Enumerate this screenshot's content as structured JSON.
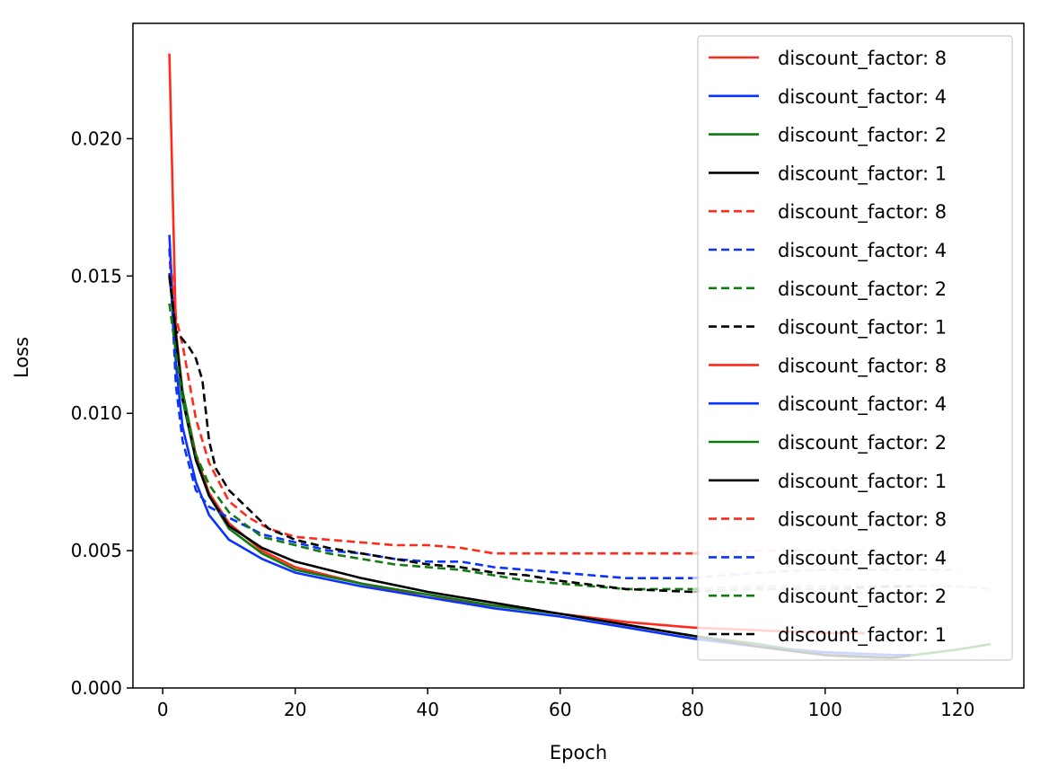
{
  "chart_data": {
    "type": "line",
    "title": "",
    "xlabel": "Epoch",
    "ylabel": "Loss",
    "xlim": [
      -4.5,
      130
    ],
    "ylim": [
      0,
      0.0242
    ],
    "x_ticks": [
      0,
      20,
      40,
      60,
      80,
      100,
      120
    ],
    "y_ticks": [
      0.0,
      0.005,
      0.01,
      0.015,
      0.02
    ],
    "y_tick_labels": [
      "0.000",
      "0.005",
      "0.010",
      "0.015",
      "0.020"
    ],
    "grid": false,
    "legend_position": "top-right",
    "series": [
      {
        "name": "discount_factor: 8",
        "color": "#ff2a1a",
        "style": "solid",
        "alpha": 1.0,
        "smooth": false,
        "x": [
          1,
          2,
          3,
          5,
          7,
          10,
          15,
          20,
          30,
          40,
          50,
          60,
          70,
          80,
          90,
          100,
          106
        ],
        "y": [
          0.0231,
          0.013,
          0.0108,
          0.0085,
          0.0071,
          0.006,
          0.005,
          0.0044,
          0.0038,
          0.0033,
          0.003,
          0.0027,
          0.0024,
          0.0022,
          0.0021,
          0.002,
          0.002
        ]
      },
      {
        "name": "discount_factor: 4",
        "color": "#0a33ff",
        "style": "solid",
        "alpha": 1.0,
        "smooth": false,
        "x": [
          1,
          2,
          3,
          5,
          7,
          10,
          15,
          20,
          30,
          40,
          50,
          60,
          70,
          80,
          90,
          100,
          110,
          113
        ],
        "y": [
          0.0165,
          0.0118,
          0.0095,
          0.0075,
          0.0063,
          0.0054,
          0.0047,
          0.0042,
          0.0037,
          0.0033,
          0.0029,
          0.0026,
          0.0022,
          0.0018,
          0.0015,
          0.0013,
          0.0012,
          0.0012
        ]
      },
      {
        "name": "discount_factor: 2",
        "color": "#117a11",
        "style": "solid",
        "alpha": 1.0,
        "smooth": false,
        "x": [
          1,
          2,
          3,
          5,
          7,
          10,
          15,
          20,
          30,
          40,
          50,
          60,
          70,
          80,
          90,
          100,
          110,
          120,
          125
        ],
        "y": [
          0.015,
          0.0128,
          0.0108,
          0.0084,
          0.007,
          0.0058,
          0.0049,
          0.0043,
          0.0038,
          0.0034,
          0.003,
          0.0027,
          0.0023,
          0.0019,
          0.0016,
          0.0012,
          0.0011,
          0.0014,
          0.0016
        ]
      },
      {
        "name": "discount_factor: 1",
        "color": "#000000",
        "style": "solid",
        "alpha": 1.0,
        "smooth": false,
        "x": [
          1,
          2,
          3,
          5,
          7,
          10,
          15,
          20,
          30,
          40,
          50,
          60,
          70,
          80,
          90,
          100,
          110,
          113
        ],
        "y": [
          0.0151,
          0.0128,
          0.0105,
          0.0083,
          0.007,
          0.0059,
          0.0051,
          0.0046,
          0.004,
          0.0035,
          0.0031,
          0.0027,
          0.0023,
          0.0019,
          0.0015,
          0.0012,
          0.0011,
          0.0012
        ]
      },
      {
        "name": "discount_factor: 8",
        "color": "#ff2a1a",
        "style": "dashed",
        "alpha": 1.0,
        "smooth": false,
        "x": [
          1,
          2,
          3,
          5,
          7,
          10,
          13,
          16,
          20,
          25,
          30,
          35,
          40,
          45,
          50,
          55,
          60,
          70,
          80
        ],
        "y": [
          0.016,
          0.0135,
          0.0125,
          0.0098,
          0.0082,
          0.0068,
          0.0062,
          0.0058,
          0.0055,
          0.0054,
          0.0053,
          0.0052,
          0.0052,
          0.0051,
          0.0049,
          0.0049,
          0.0049,
          0.0049,
          0.0049
        ]
      },
      {
        "name": "discount_factor: 4",
        "color": "#0a33ff",
        "style": "dashed",
        "alpha": 1.0,
        "smooth": false,
        "x": [
          1,
          2,
          3,
          5,
          7,
          10,
          15,
          20,
          25,
          30,
          35,
          40,
          45,
          50,
          55,
          60,
          70,
          80
        ],
        "y": [
          0.016,
          0.011,
          0.009,
          0.0072,
          0.0066,
          0.0062,
          0.0056,
          0.0053,
          0.005,
          0.0049,
          0.0047,
          0.0046,
          0.0046,
          0.0044,
          0.0043,
          0.0042,
          0.004,
          0.004
        ]
      },
      {
        "name": "discount_factor: 2",
        "color": "#117a11",
        "style": "dashed",
        "alpha": 1.0,
        "smooth": false,
        "x": [
          1,
          2,
          3,
          5,
          7,
          10,
          15,
          20,
          25,
          30,
          35,
          40,
          45,
          50,
          55,
          60,
          70,
          80
        ],
        "y": [
          0.014,
          0.0122,
          0.0105,
          0.0085,
          0.0074,
          0.0064,
          0.0055,
          0.0052,
          0.0049,
          0.0047,
          0.0045,
          0.0044,
          0.0043,
          0.0041,
          0.0039,
          0.0038,
          0.0036,
          0.0036
        ]
      },
      {
        "name": "discount_factor: 1",
        "color": "#000000",
        "style": "dashed",
        "alpha": 1.0,
        "smooth": false,
        "x": [
          1,
          2,
          3,
          4,
          5,
          6,
          7,
          8,
          10,
          13,
          16,
          20,
          25,
          30,
          35,
          40,
          45,
          50,
          55,
          60,
          70,
          80
        ],
        "y": [
          0.015,
          0.013,
          0.0127,
          0.0124,
          0.012,
          0.0112,
          0.009,
          0.008,
          0.0072,
          0.0065,
          0.0058,
          0.0054,
          0.0051,
          0.0049,
          0.0047,
          0.0045,
          0.0044,
          0.0042,
          0.0041,
          0.0039,
          0.0036,
          0.0035
        ]
      },
      {
        "name": "discount_factor: 8",
        "color": "#ff2a1a",
        "style": "solid",
        "alpha": 0.3,
        "smooth": true,
        "x": [
          80,
          90,
          100,
          106
        ],
        "y": [
          0.0022,
          0.0021,
          0.002,
          0.002
        ]
      },
      {
        "name": "discount_factor: 4",
        "color": "#0a33ff",
        "style": "solid",
        "alpha": 0.3,
        "smooth": true,
        "x": [
          80,
          90,
          100,
          110,
          113
        ],
        "y": [
          0.0018,
          0.0015,
          0.0013,
          0.0012,
          0.0012
        ]
      },
      {
        "name": "discount_factor: 2",
        "color": "#117a11",
        "style": "solid",
        "alpha": 0.3,
        "smooth": true,
        "x": [
          80,
          90,
          100,
          110,
          120,
          125
        ],
        "y": [
          0.0019,
          0.0016,
          0.0012,
          0.0011,
          0.0014,
          0.0016
        ]
      },
      {
        "name": "discount_factor: 1",
        "color": "#000000",
        "style": "solid",
        "alpha": 0.3,
        "smooth": true,
        "x": [
          80,
          90,
          100,
          110,
          113
        ],
        "y": [
          0.0019,
          0.0015,
          0.0012,
          0.0011,
          0.0012
        ]
      },
      {
        "name": "discount_factor: 8",
        "color": "#ff2a1a",
        "style": "dashed",
        "alpha": 0.3,
        "smooth": true,
        "x": [
          80,
          90,
          100,
          106
        ],
        "y": [
          0.0049,
          0.005,
          0.005,
          0.005
        ]
      },
      {
        "name": "discount_factor: 4",
        "color": "#0a33ff",
        "style": "dashed",
        "alpha": 0.3,
        "smooth": true,
        "x": [
          80,
          90,
          100,
          110,
          120
        ],
        "y": [
          0.004,
          0.0042,
          0.0043,
          0.0043,
          0.0043
        ]
      },
      {
        "name": "discount_factor: 2",
        "color": "#117a11",
        "style": "dashed",
        "alpha": 0.3,
        "smooth": true,
        "x": [
          80,
          90,
          100,
          110,
          120,
          125
        ],
        "y": [
          0.0036,
          0.0037,
          0.0037,
          0.0037,
          0.0037,
          0.0036
        ]
      },
      {
        "name": "discount_factor: 1",
        "color": "#000000",
        "style": "dashed",
        "alpha": 0.3,
        "smooth": true,
        "x": [
          80,
          90,
          100,
          110,
          113
        ],
        "y": [
          0.0035,
          0.0036,
          0.0036,
          0.0037,
          0.0037
        ]
      }
    ]
  }
}
